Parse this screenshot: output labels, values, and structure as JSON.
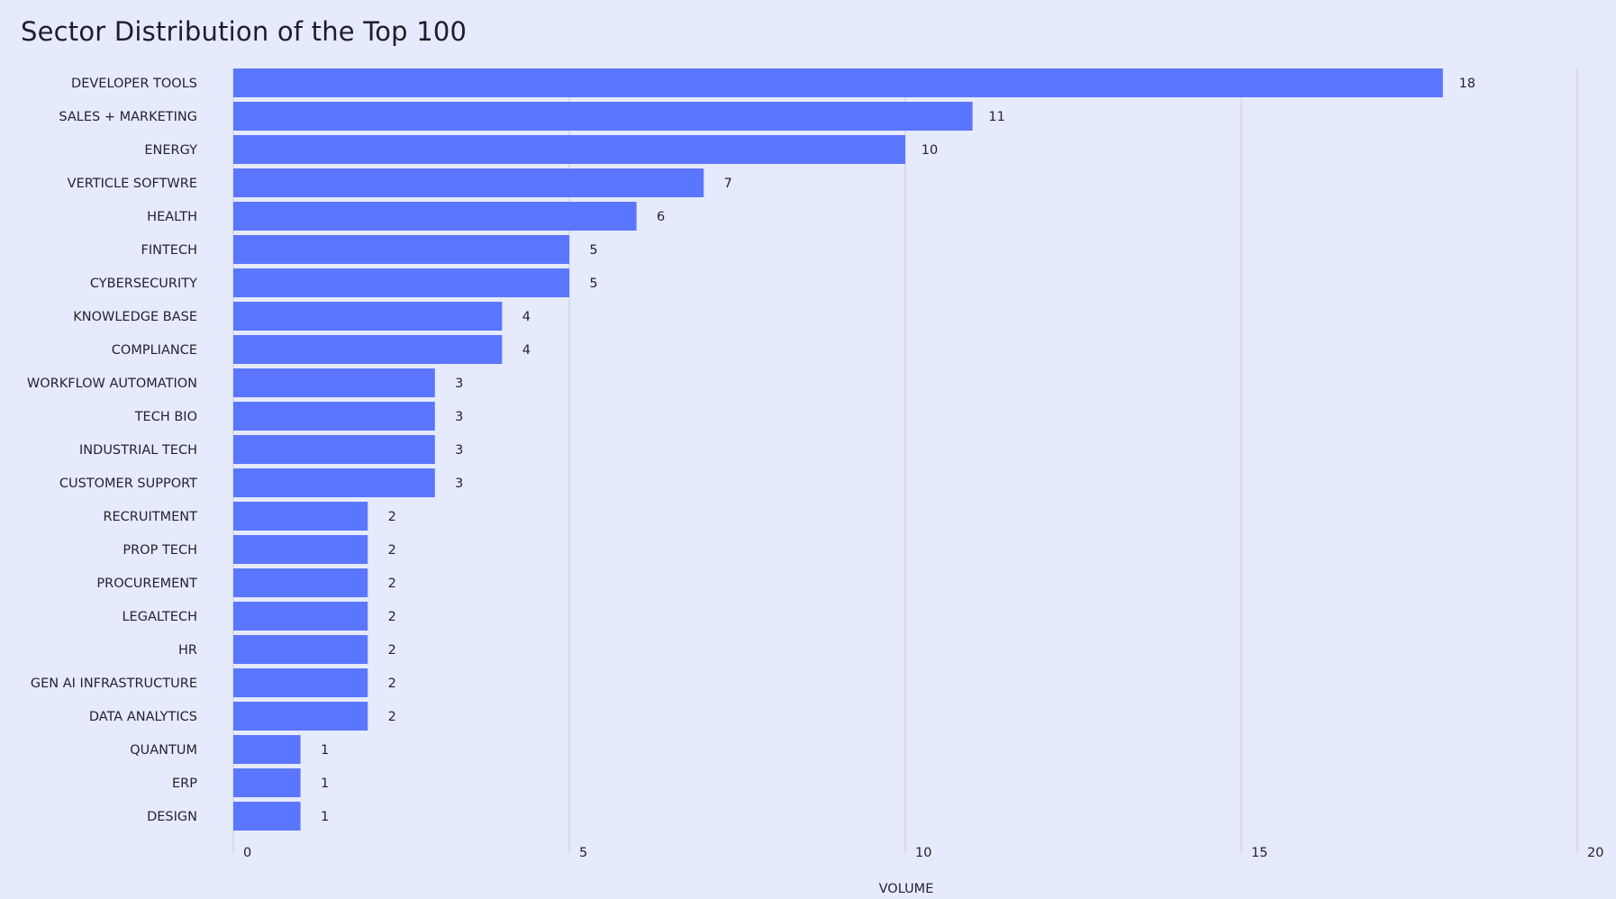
{
  "chart_data": {
    "type": "bar",
    "orientation": "horizontal",
    "title": "Sector Distribution of the Top 100",
    "xlabel": "VOLUME",
    "ylabel": "",
    "xlim": [
      0,
      20
    ],
    "ticks": [
      "0",
      "5",
      "10",
      "15",
      "20"
    ],
    "grid": true,
    "bar_color": "#5b76fe",
    "background_color": "#e5eafd",
    "categories": [
      "DEVELOPER TOOLS",
      "SALES + MARKETING",
      "ENERGY",
      "VERTICLE SOFTWRE",
      "HEALTH",
      "FINTECH",
      "CYBERSECURITY",
      "KNOWLEDGE BASE",
      "COMPLIANCE",
      "WORKFLOW AUTOMATION",
      "TECH BIO",
      "INDUSTRIAL TECH",
      "CUSTOMER SUPPORT",
      "RECRUITMENT",
      "PROP TECH",
      "PROCUREMENT",
      "LEGALTECH",
      "HR",
      "GEN AI INFRASTRUCTURE",
      "DATA ANALYTICS",
      "QUANTUM",
      "ERP",
      "DESIGN"
    ],
    "values": [
      18,
      11,
      10,
      7,
      6,
      5,
      5,
      4,
      4,
      3,
      3,
      3,
      3,
      2,
      2,
      2,
      2,
      2,
      2,
      2,
      1,
      1,
      1
    ]
  }
}
